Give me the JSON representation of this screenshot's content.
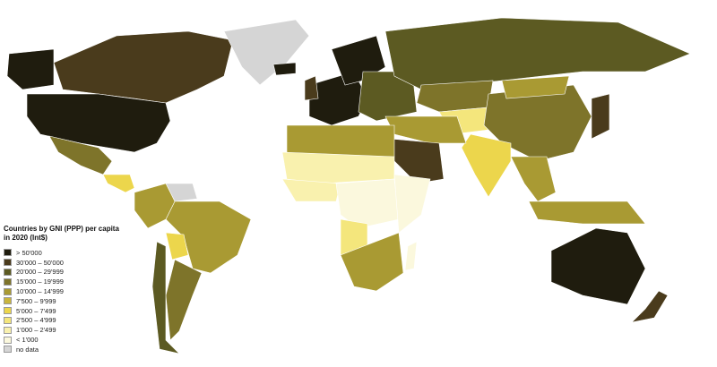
{
  "legend": {
    "title": "Countries by GNI (PPP) per capita in 2020 (Int$)",
    "items": [
      {
        "label": "> 50'000",
        "color": "#1f1c0e"
      },
      {
        "label": "30'000 – 50'000",
        "color": "#4a3b1c"
      },
      {
        "label": "20'000 – 29'999",
        "color": "#5c5a22"
      },
      {
        "label": "15'000 – 19'999",
        "color": "#7e742a"
      },
      {
        "label": "10'000 – 14'999",
        "color": "#a99a33"
      },
      {
        "label": "7'500 – 9'999",
        "color": "#c9b53d"
      },
      {
        "label": "5'000 – 7'499",
        "color": "#ecd64c"
      },
      {
        "label": "2'500 – 4'999",
        "color": "#f4e67c"
      },
      {
        "label": "1'000 – 2'499",
        "color": "#f9f1ae"
      },
      {
        "label": "< 1'000",
        "color": "#fbf8dd"
      },
      {
        "label": "no data",
        "color": "#d5d5d5"
      }
    ]
  },
  "regions": [
    {
      "name": "Canada",
      "cat": 1
    },
    {
      "name": "United States",
      "cat": 0
    },
    {
      "name": "Alaska",
      "cat": 0
    },
    {
      "name": "Greenland",
      "cat": 10
    },
    {
      "name": "Mexico",
      "cat": 3
    },
    {
      "name": "Central America",
      "cat": 6
    },
    {
      "name": "Venezuela",
      "cat": 10
    },
    {
      "name": "Brazil",
      "cat": 4
    },
    {
      "name": "Andean South America",
      "cat": 4
    },
    {
      "name": "Bolivia",
      "cat": 6
    },
    {
      "name": "Argentina",
      "cat": 3
    },
    {
      "name": "Chile",
      "cat": 2
    },
    {
      "name": "Western Europe",
      "cat": 0
    },
    {
      "name": "Scandinavia",
      "cat": 0
    },
    {
      "name": "Eastern Europe",
      "cat": 2
    },
    {
      "name": "Russia",
      "cat": 2
    },
    {
      "name": "Kazakhstan",
      "cat": 3
    },
    {
      "name": "Central Asia",
      "cat": 7
    },
    {
      "name": "China",
      "cat": 3
    },
    {
      "name": "Mongolia",
      "cat": 4
    },
    {
      "name": "India",
      "cat": 6
    },
    {
      "name": "Middle East",
      "cat": 4
    },
    {
      "name": "Saudi Arabia",
      "cat": 1
    },
    {
      "name": "North Africa",
      "cat": 4
    },
    {
      "name": "Sahel",
      "cat": 8
    },
    {
      "name": "West Africa",
      "cat": 8
    },
    {
      "name": "Central Africa",
      "cat": 9
    },
    {
      "name": "East Africa",
      "cat": 9
    },
    {
      "name": "Angola",
      "cat": 7
    },
    {
      "name": "Southern Africa",
      "cat": 4
    },
    {
      "name": "Madagascar",
      "cat": 9
    },
    {
      "name": "Southeast Asia",
      "cat": 4
    },
    {
      "name": "Indonesia",
      "cat": 4
    },
    {
      "name": "Japan",
      "cat": 1
    },
    {
      "name": "Australia",
      "cat": 0
    },
    {
      "name": "New Zealand",
      "cat": 1
    },
    {
      "name": "Iceland",
      "cat": 0
    },
    {
      "name": "United Kingdom",
      "cat": 1
    }
  ]
}
